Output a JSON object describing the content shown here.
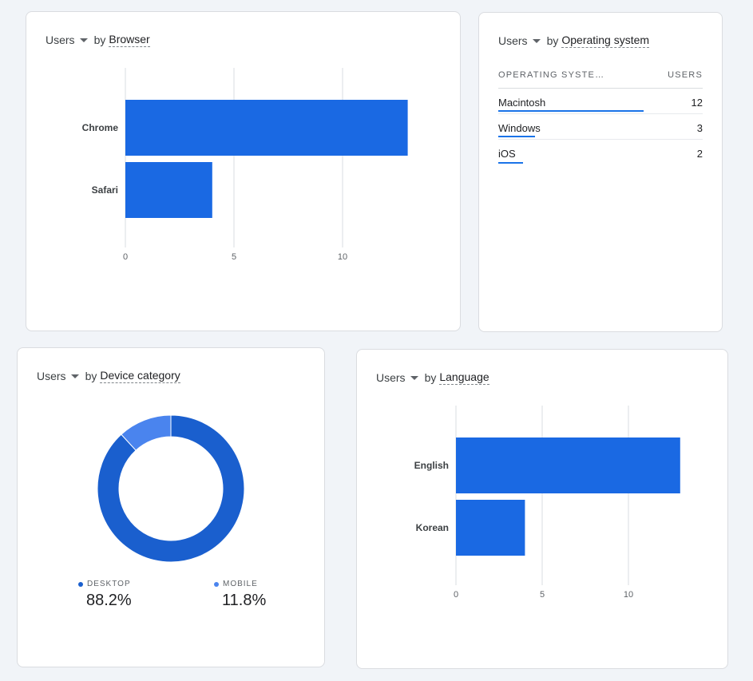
{
  "browser_card": {
    "metric": "Users",
    "by": "by",
    "dimension": "Browser",
    "chart_data": {
      "type": "bar",
      "orientation": "horizontal",
      "categories": [
        "Chrome",
        "Safari"
      ],
      "values": [
        13,
        4
      ],
      "xticks": [
        "0",
        "5",
        "10"
      ],
      "xlim": [
        0,
        13.5
      ],
      "grid": true,
      "color": "#1a69e3"
    }
  },
  "os_card": {
    "metric": "Users",
    "by": "by",
    "dimension": "Operating system",
    "table": {
      "columns": [
        "OPERATING SYSTE…",
        "USERS"
      ],
      "rows": [
        {
          "name": "Macintosh",
          "users": "12",
          "share": 0.71
        },
        {
          "name": "Windows",
          "users": "3",
          "share": 0.18
        },
        {
          "name": "iOS",
          "users": "2",
          "share": 0.12
        }
      ]
    }
  },
  "device_card": {
    "metric": "Users",
    "by": "by",
    "dimension": "Device category",
    "chart_data": {
      "type": "pie",
      "donut": true,
      "labels": [
        "DESKTOP",
        "MOBILE"
      ],
      "values": [
        88.2,
        11.8
      ],
      "display": [
        "88.2%",
        "11.8%"
      ],
      "colors": [
        "#1a5fce",
        "#4a84ee"
      ]
    }
  },
  "language_card": {
    "metric": "Users",
    "by": "by",
    "dimension": "Language",
    "chart_data": {
      "type": "bar",
      "orientation": "horizontal",
      "categories": [
        "English",
        "Korean"
      ],
      "values": [
        13,
        4
      ],
      "xticks": [
        "0",
        "5",
        "10"
      ],
      "xlim": [
        0,
        13.5
      ],
      "grid": true,
      "color": "#1a69e3"
    }
  }
}
